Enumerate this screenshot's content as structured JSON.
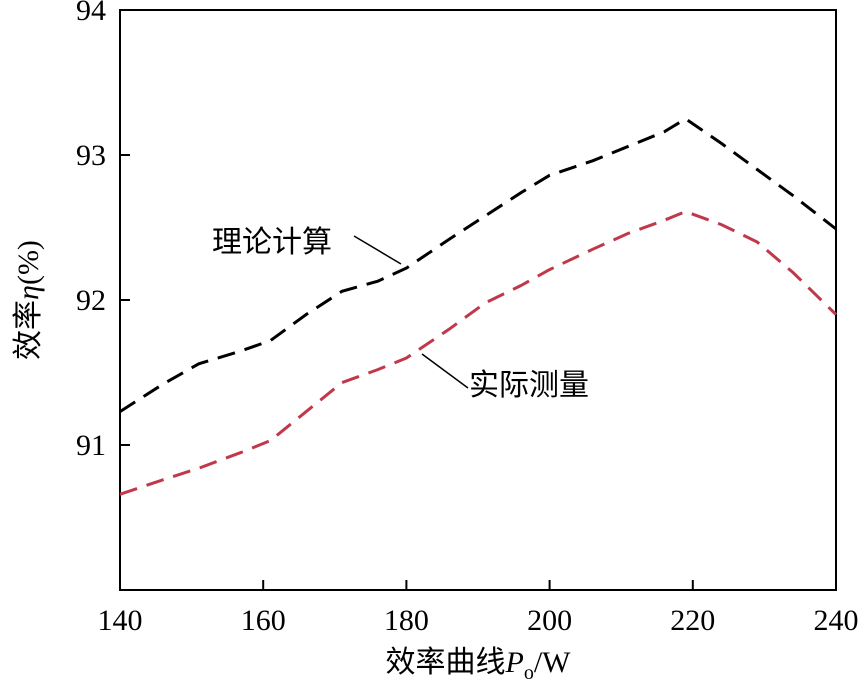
{
  "chart_data": {
    "type": "line",
    "xlabel": {
      "prefix": "效率曲线",
      "var": "P",
      "sub": "o",
      "suffix": "/W"
    },
    "ylabel": {
      "prefix": "效率",
      "var": "η",
      "suffix": "(%)"
    },
    "xlim": [
      140,
      240
    ],
    "ylim": [
      90,
      94
    ],
    "xticks": [
      "140",
      "160",
      "180",
      "200",
      "220",
      "240"
    ],
    "yticks": [
      "91",
      "92",
      "93",
      "94"
    ],
    "grid": false,
    "series": [
      {
        "name": "理论计算",
        "color": "#000000",
        "style": "dashed",
        "x": [
          140,
          146,
          151,
          157,
          161,
          166,
          171,
          176,
          180,
          186,
          191,
          196,
          200,
          206,
          211,
          216,
          219,
          224,
          229,
          234,
          240
        ],
        "y": [
          91.23,
          91.42,
          91.56,
          91.65,
          91.72,
          91.9,
          92.06,
          92.13,
          92.22,
          92.42,
          92.58,
          92.74,
          92.86,
          92.96,
          93.06,
          93.16,
          93.25,
          93.08,
          92.9,
          92.72,
          92.49
        ]
      },
      {
        "name": "实际测量",
        "color": "#c0394a",
        "style": "dashed",
        "x": [
          140,
          146,
          151,
          157,
          161,
          166,
          171,
          176,
          180,
          186,
          191,
          196,
          200,
          206,
          211,
          216,
          219,
          224,
          229,
          234,
          240
        ],
        "y": [
          90.66,
          90.76,
          90.84,
          90.95,
          91.03,
          91.23,
          91.43,
          91.52,
          91.6,
          91.8,
          91.98,
          92.1,
          92.21,
          92.35,
          92.46,
          92.55,
          92.61,
          92.52,
          92.4,
          92.19,
          91.9
        ]
      }
    ],
    "annotations": [
      {
        "text": "理论计算",
        "series": 0
      },
      {
        "text": "实际测量",
        "series": 1
      }
    ]
  }
}
